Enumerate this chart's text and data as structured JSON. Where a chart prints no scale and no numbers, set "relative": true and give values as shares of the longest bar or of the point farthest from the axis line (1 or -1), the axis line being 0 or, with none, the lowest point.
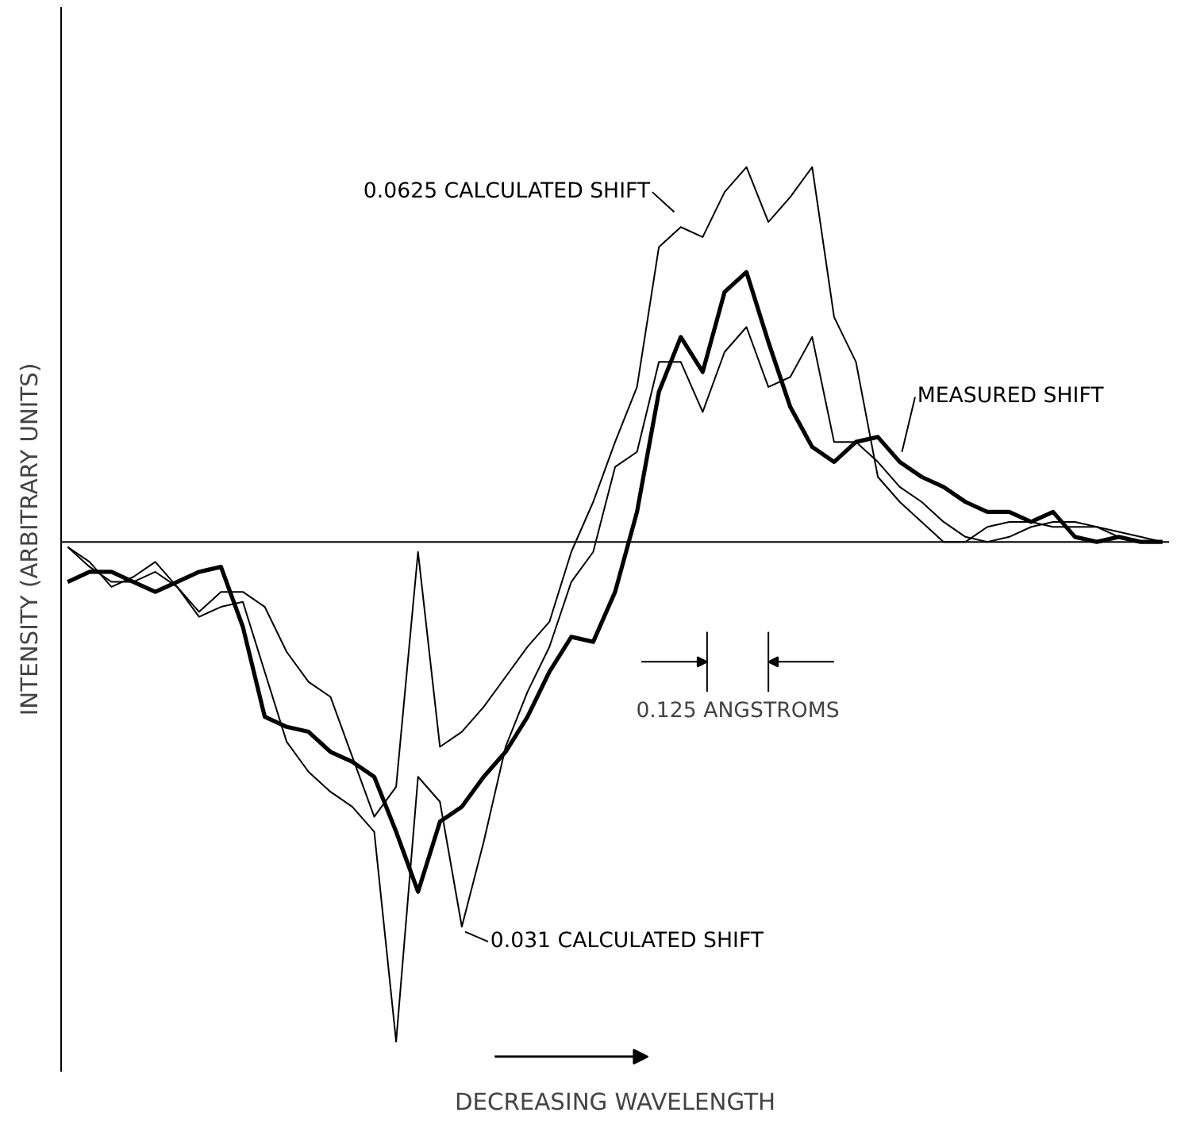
{
  "chart_data": {
    "type": "line",
    "relative": true,
    "categories": [
      null,
      null,
      null,
      null,
      null,
      null,
      null,
      null,
      null,
      null,
      null,
      null,
      null,
      null,
      null,
      null,
      null,
      null,
      null,
      null,
      null,
      null,
      null,
      null,
      null,
      null,
      null,
      null,
      null,
      null,
      null,
      null,
      null,
      null,
      null,
      null,
      null,
      null,
      null,
      null,
      null,
      null,
      null,
      null,
      null,
      null,
      null,
      null,
      null,
      null,
      null
    ],
    "xlabel": "DECREASING WAVELENGTH",
    "ylabel": "INTENSITY (ARBITRARY UNITS)",
    "annotations": [
      "0.125 ANGSTROMS"
    ],
    "series": [
      {
        "name": "0.0625 CALCULATED SHIFT",
        "color": "#000000",
        "values": [
          -0.01,
          -0.04,
          -0.09,
          -0.07,
          -0.04,
          -0.09,
          -0.14,
          -0.1,
          -0.1,
          -0.13,
          -0.22,
          -0.28,
          -0.31,
          -0.43,
          -0.55,
          -0.49,
          -0.02,
          -0.41,
          -0.38,
          -0.33,
          -0.27,
          -0.21,
          -0.16,
          -0.02,
          0.08,
          0.2,
          0.31,
          0.59,
          0.63,
          0.61,
          0.7,
          0.75,
          0.64,
          0.69,
          0.75,
          0.45,
          0.36,
          0.13,
          0.08,
          0.04,
          0.0,
          0,
          0.03,
          0.04,
          0.04,
          0.03,
          0.03,
          0.03,
          0.02,
          0.01,
          0
        ]
      },
      {
        "name": "MEASURED SHIFT",
        "color": "#000000",
        "values": [
          -0.08,
          -0.06,
          -0.06,
          -0.08,
          -0.1,
          -0.08,
          -0.06,
          -0.05,
          -0.17,
          -0.35,
          -0.37,
          -0.38,
          -0.42,
          -0.44,
          -0.47,
          -0.58,
          -0.7,
          -0.56,
          -0.53,
          -0.47,
          -0.42,
          -0.35,
          -0.26,
          -0.19,
          -0.2,
          -0.1,
          0.06,
          0.3,
          0.41,
          0.34,
          0.5,
          0.54,
          0.4,
          0.27,
          0.19,
          0.16,
          0.2,
          0.21,
          0.16,
          0.13,
          0.11,
          0.08,
          0.06,
          0.06,
          0.04,
          0.06,
          0.01,
          0.0,
          0.01,
          0.0,
          0
        ]
      },
      {
        "name": "0.031 CALCULATED SHIFT",
        "color": "#000000",
        "values": [
          -0.01,
          -0.05,
          -0.08,
          -0.08,
          -0.06,
          -0.09,
          -0.15,
          -0.13,
          -0.12,
          -0.26,
          -0.4,
          -0.46,
          -0.5,
          -0.53,
          -0.58,
          -1,
          -0.47,
          -0.52,
          -0.77,
          -0.6,
          -0.41,
          -0.3,
          -0.21,
          -0.08,
          -0.02,
          0.15,
          0.18,
          0.36,
          0.36,
          0.26,
          0.38,
          0.43,
          0.31,
          0.33,
          0.41,
          0.2,
          0.2,
          0.16,
          0.11,
          0.08,
          0.04,
          0.01,
          0.0,
          0.01,
          0.03,
          0.04,
          0.04,
          0.03,
          0.01,
          0,
          0
        ]
      }
    ]
  }
}
